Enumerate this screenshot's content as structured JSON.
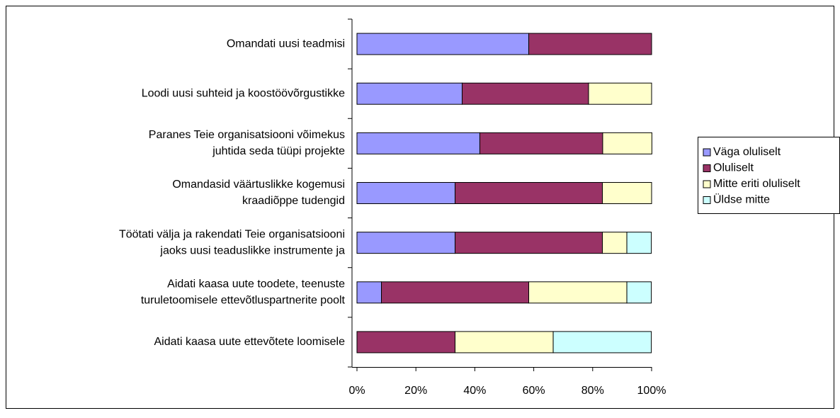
{
  "chart_data": {
    "type": "stacked-bar-horizontal",
    "categories": [
      [
        "Omandati uusi teadmisi"
      ],
      [
        "Loodi uusi suhteid ja koostöövõrgustikke"
      ],
      [
        "Paranes Teie organisatsiooni võimekus",
        "juhtida seda tüüpi projekte"
      ],
      [
        "Omandasid väärtuslikke kogemusi",
        "kraadiõppe tudengid"
      ],
      [
        "Töötati välja ja rakendati Teie organisatsiooni",
        "jaoks uusi teaduslikke instrumente ja"
      ],
      [
        "Aidati kaasa uute toodete, teenuste",
        "turuletoomisele ettevõtluspartnerite poolt"
      ],
      [
        "Aidati kaasa uute ettevõtete loomisele"
      ]
    ],
    "series": [
      {
        "name": "Väga oluliselt",
        "color": "#9999ff",
        "values": [
          58.3,
          35.7,
          41.7,
          33.3,
          33.3,
          8.3,
          0
        ]
      },
      {
        "name": "Oluliselt",
        "color": "#993366",
        "values": [
          41.7,
          42.9,
          41.7,
          50,
          50,
          50,
          33.3
        ]
      },
      {
        "name": "Mitte eriti oluliselt",
        "color": "#ffffcc",
        "values": [
          0,
          21.4,
          16.7,
          16.7,
          8.3,
          33.3,
          33.3
        ]
      },
      {
        "name": "Üldse mitte",
        "color": "#ccffff",
        "values": [
          0,
          0,
          0,
          0,
          8.3,
          8.3,
          33.3
        ]
      }
    ],
    "xlim": [
      0,
      100
    ],
    "xticks": [
      {
        "value": 0,
        "label": "0%"
      },
      {
        "value": 20,
        "label": "20%"
      },
      {
        "value": 40,
        "label": "40%"
      },
      {
        "value": 60,
        "label": "60%"
      },
      {
        "value": 80,
        "label": "80%"
      },
      {
        "value": 100,
        "label": "100%"
      }
    ],
    "legend": "right"
  }
}
